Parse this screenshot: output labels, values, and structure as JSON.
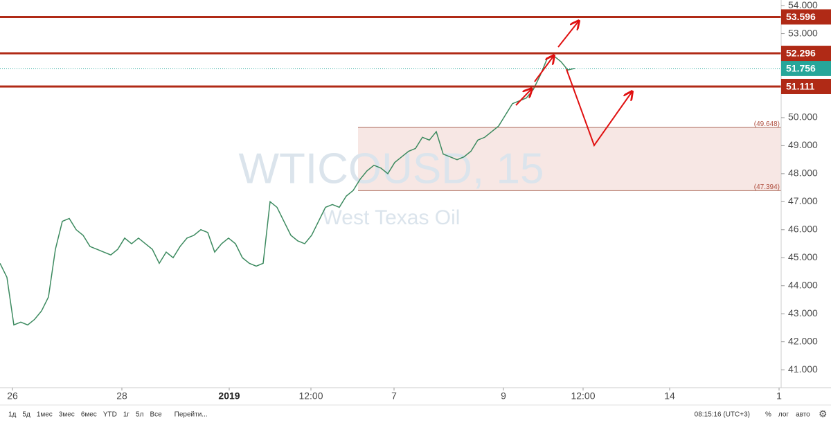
{
  "chart_data": {
    "type": "line",
    "title": "WTICOUSD, 15",
    "subtitle": "West Texas Oil",
    "x": [
      0,
      1,
      2,
      3,
      4,
      5,
      6,
      7,
      8,
      9,
      10,
      11,
      12,
      13,
      14,
      15,
      16,
      17,
      18,
      19,
      20,
      21,
      22,
      23,
      24,
      25,
      26,
      27,
      28,
      29,
      30,
      31,
      32,
      33,
      34,
      35,
      36,
      37,
      38,
      39,
      40,
      41,
      42,
      43,
      44,
      45,
      46,
      47,
      48,
      49,
      50,
      51,
      52,
      53,
      54,
      55,
      56,
      57,
      58,
      59,
      60,
      61,
      62,
      63,
      64,
      65,
      66,
      67,
      68,
      69,
      70,
      71,
      72,
      73,
      74,
      75,
      76,
      77,
      78,
      79,
      80,
      81,
      82,
      83
    ],
    "values": [
      44.8,
      44.3,
      42.6,
      42.7,
      42.6,
      42.8,
      43.1,
      43.6,
      45.3,
      46.3,
      46.4,
      46.0,
      45.8,
      45.4,
      45.3,
      45.2,
      45.1,
      45.3,
      45.7,
      45.5,
      45.7,
      45.5,
      45.3,
      44.8,
      45.2,
      45.0,
      45.4,
      45.7,
      45.8,
      46.0,
      45.9,
      45.2,
      45.5,
      45.7,
      45.5,
      45.0,
      44.8,
      44.7,
      44.8,
      47.0,
      46.8,
      46.3,
      45.8,
      45.6,
      45.5,
      45.8,
      46.3,
      46.8,
      46.9,
      46.8,
      47.2,
      47.4,
      47.8,
      48.1,
      48.3,
      48.2,
      48.0,
      48.4,
      48.6,
      48.8,
      48.9,
      49.3,
      49.2,
      49.5,
      48.7,
      48.6,
      48.5,
      48.6,
      48.8,
      49.2,
      49.3,
      49.5,
      49.7,
      50.1,
      50.5,
      50.6,
      50.7,
      51.0,
      51.5,
      52.1,
      52.2,
      52.0,
      51.7,
      51.76
    ],
    "color": "#3c8a5f",
    "xlim": [
      0,
      112.8
    ],
    "xticks": [
      {
        "value": 1.8,
        "label": "26"
      },
      {
        "value": 17.6,
        "label": "28"
      },
      {
        "value": 33.1,
        "label": "2019"
      },
      {
        "value": 44.9,
        "label": "12:00"
      },
      {
        "value": 56.9,
        "label": "7"
      },
      {
        "value": 72.7,
        "label": "9"
      },
      {
        "value": 84.2,
        "label": "12:00"
      },
      {
        "value": 96.7,
        "label": "14"
      },
      {
        "value": 112.5,
        "label": "1"
      }
    ],
    "ylim": [
      40.36,
      54.2
    ],
    "yticks": [
      {
        "value": 41,
        "label": "41.000"
      },
      {
        "value": 42,
        "label": "42.000"
      },
      {
        "value": 43,
        "label": "43.000"
      },
      {
        "value": 44,
        "label": "44.000"
      },
      {
        "value": 45,
        "label": "45.000"
      },
      {
        "value": 46,
        "label": "46.000"
      },
      {
        "value": 47,
        "label": "47.000"
      },
      {
        "value": 48,
        "label": "48.000"
      },
      {
        "value": 49,
        "label": "49.000"
      },
      {
        "value": 50,
        "label": "50.000"
      },
      {
        "value": 51,
        "label": "51.000"
      },
      {
        "value": 52,
        "label": "52.000"
      },
      {
        "value": 53,
        "label": "53.000"
      },
      {
        "value": 54,
        "label": "54.000"
      }
    ],
    "levels": [
      53.596,
      52.296,
      51.111
    ],
    "level_color": "#b02a16",
    "last_price": 51.756,
    "last_price_color": "#26a69a",
    "zone": {
      "top": {
        "value": 49.648,
        "label": "(49.648)"
      },
      "bottom": {
        "value": 47.394,
        "label": "(47.394)"
      },
      "x_start": 51.7
    },
    "toolbar": [
      "1д",
      "5д",
      "1мес",
      "3мес",
      "6мес",
      "YTD",
      "1г",
      "5л",
      "Все",
      "Перейти..."
    ],
    "clock": "08:15:16 (UTC+3)",
    "toolbar_right": [
      "%",
      "лог",
      "авто"
    ]
  }
}
